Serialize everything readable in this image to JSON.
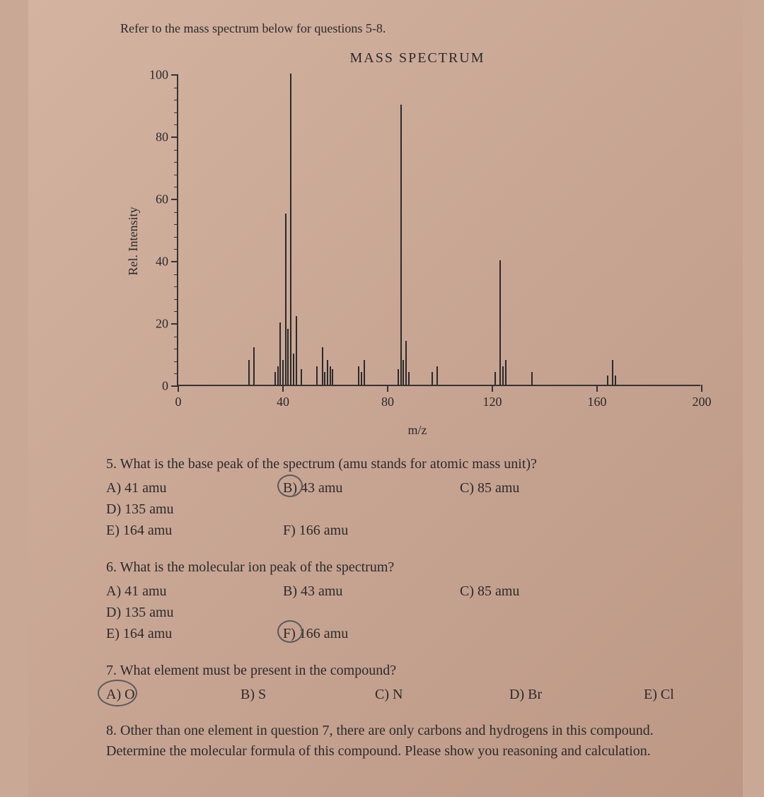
{
  "instruction": "Refer to the mass spectrum below for questions 5-8.",
  "chart": {
    "type": "bar",
    "title": "MASS SPECTRUM",
    "ylabel": "Rel. Intensity",
    "xlabel": "m/z",
    "xlim": [
      0,
      200
    ],
    "ylim": [
      0,
      100
    ],
    "xticks": [
      0.0,
      40,
      80,
      120,
      160,
      200
    ],
    "yticks": [
      0.0,
      20,
      40,
      60,
      80,
      100
    ],
    "bar_color": "#2a2a2a",
    "background_color": "#d0ad9b",
    "axis_color": "#333333",
    "peaks": [
      {
        "mz": 27,
        "h": 8
      },
      {
        "mz": 29,
        "h": 12
      },
      {
        "mz": 37,
        "h": 4
      },
      {
        "mz": 38,
        "h": 6
      },
      {
        "mz": 39,
        "h": 20
      },
      {
        "mz": 40,
        "h": 8
      },
      {
        "mz": 41,
        "h": 55
      },
      {
        "mz": 42,
        "h": 18
      },
      {
        "mz": 43,
        "h": 100
      },
      {
        "mz": 44,
        "h": 10
      },
      {
        "mz": 45,
        "h": 22
      },
      {
        "mz": 47,
        "h": 5
      },
      {
        "mz": 53,
        "h": 6
      },
      {
        "mz": 55,
        "h": 12
      },
      {
        "mz": 56,
        "h": 4
      },
      {
        "mz": 57,
        "h": 8
      },
      {
        "mz": 58,
        "h": 6
      },
      {
        "mz": 59,
        "h": 5
      },
      {
        "mz": 69,
        "h": 6
      },
      {
        "mz": 70,
        "h": 4
      },
      {
        "mz": 71,
        "h": 8
      },
      {
        "mz": 84,
        "h": 5
      },
      {
        "mz": 85,
        "h": 90
      },
      {
        "mz": 86,
        "h": 8
      },
      {
        "mz": 87,
        "h": 14
      },
      {
        "mz": 88,
        "h": 4
      },
      {
        "mz": 97,
        "h": 4
      },
      {
        "mz": 99,
        "h": 6
      },
      {
        "mz": 121,
        "h": 4
      },
      {
        "mz": 123,
        "h": 40
      },
      {
        "mz": 124,
        "h": 6
      },
      {
        "mz": 125,
        "h": 8
      },
      {
        "mz": 135,
        "h": 4
      },
      {
        "mz": 164,
        "h": 3
      },
      {
        "mz": 166,
        "h": 8
      },
      {
        "mz": 167,
        "h": 3
      }
    ]
  },
  "q5": {
    "stem": "5. What is the base peak of the spectrum (amu stands for atomic mass unit)?",
    "a": "A) 41 amu",
    "b": "B) 43 amu",
    "c": "C) 85 amu",
    "d": "D) 135 amu",
    "e": "E) 164 amu",
    "f": "F) 166 amu"
  },
  "q6": {
    "stem": "6. What is the molecular ion peak of the spectrum?",
    "a": "A) 41 amu",
    "b": "B) 43 amu",
    "c": "C) 85 amu",
    "d": "D) 135 amu",
    "e": "E) 164 amu",
    "f": "F) 166 amu"
  },
  "q7": {
    "stem": "7. What element must be present in the compound?",
    "a": "A) O",
    "b": "B) S",
    "c": "C) N",
    "d": "D) Br",
    "e": "E) Cl"
  },
  "q8": {
    "text": "8. Other than one element in question 7, there are only carbons and hydrogens in this compound. Determine the molecular formula of this compound. Please show you reasoning and calculation."
  }
}
